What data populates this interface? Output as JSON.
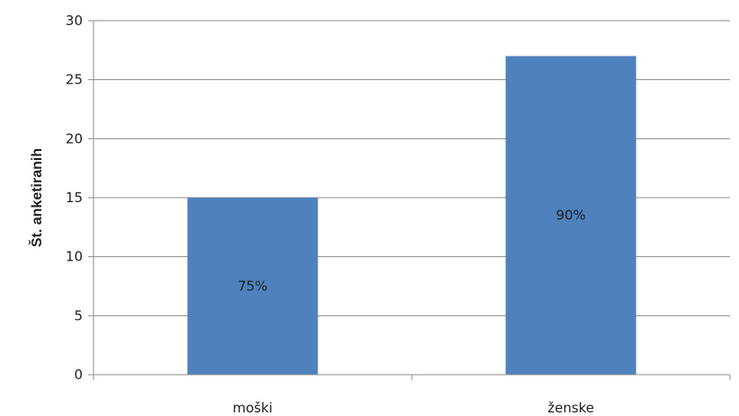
{
  "chart_data": {
    "type": "bar",
    "title": "",
    "xlabel": "",
    "ylabel": "Št. anketiranih",
    "categories": [
      "moški",
      "ženske"
    ],
    "values": [
      15,
      27
    ],
    "data_labels": [
      "75%",
      "90%"
    ],
    "ylim": [
      0,
      30
    ],
    "yticks": [
      0,
      5,
      10,
      15,
      20,
      25,
      30
    ],
    "grid": true,
    "legend": "none",
    "bar_color": "#4F81BD"
  }
}
